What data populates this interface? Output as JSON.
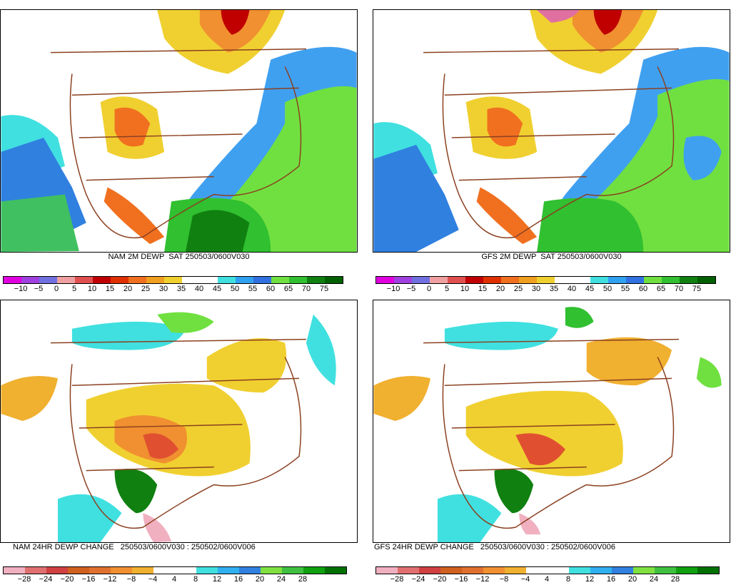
{
  "panels": [
    {
      "title": "NAM 2M DEWP  SAT 250503/0600V030",
      "kind": "dewp",
      "ticks": [
        "−10",
        "−5",
        "0",
        "5",
        "10",
        "15",
        "20",
        "25",
        "30",
        "35",
        "40",
        "45",
        "50",
        "55",
        "60",
        "65",
        "70",
        "75"
      ]
    },
    {
      "title": "GFS 2M DEWP  SAT 250503/0600V030",
      "kind": "dewp",
      "ticks": [
        "−10",
        "−5",
        "0",
        "5",
        "10",
        "15",
        "20",
        "25",
        "30",
        "35",
        "40",
        "45",
        "50",
        "55",
        "60",
        "65",
        "70",
        "75"
      ]
    },
    {
      "title": "NAM 24HR DEWP CHANGE   250503/0600V030 : 250502/0600V006",
      "kind": "change",
      "ticks": [
        "−28",
        "−24",
        "−20",
        "−16",
        "−12",
        "−8",
        "−4",
        "4",
        "8",
        "12",
        "16",
        "20",
        "24",
        "28"
      ]
    },
    {
      "title": "GFS 24HR DEWP CHANGE   250503/0600V030 : 250502/0600V006",
      "kind": "change",
      "ticks": [
        "−28",
        "−24",
        "−20",
        "−16",
        "−12",
        "−8",
        "−4",
        "4",
        "8",
        "12",
        "16",
        "20",
        "24",
        "28"
      ]
    }
  ],
  "colorbars": {
    "dewp": [
      "#e000e0",
      "#a040e0",
      "#7070e0",
      "#f0a0a0",
      "#e05050",
      "#c00000",
      "#e03000",
      "#f07020",
      "#f0a020",
      "#f0d030",
      "#ffffff",
      "#ffffff",
      "#40e0e0",
      "#30a0f0",
      "#3070e0",
      "#70e040",
      "#30c030",
      "#108010",
      "#006000"
    ],
    "change": [
      "#f0b0c0",
      "#e07070",
      "#d04040",
      "#d06020",
      "#e07030",
      "#f09030",
      "#f0b030",
      "#ffffff",
      "#ffffff",
      "#40e0e0",
      "#30b0f0",
      "#3080e0",
      "#80e040",
      "#40c040",
      "#10a010",
      "#007000"
    ]
  }
}
